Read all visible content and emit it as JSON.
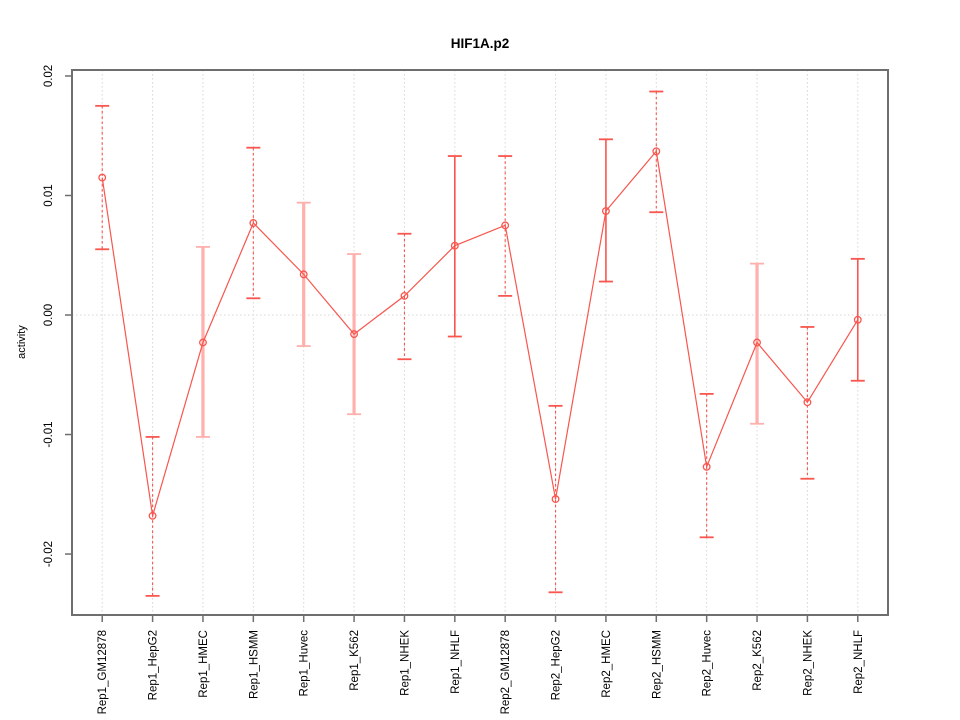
{
  "page": {
    "background": "#ffffff"
  },
  "chart_data": {
    "type": "line",
    "title": "HIF1A.p2",
    "xlabel": "",
    "ylabel": "activity",
    "legend": "none",
    "grid": {
      "vertical_at_categories": true,
      "horizontal_at_zero": true,
      "style": "dotted"
    },
    "ylim": [
      -0.0251,
      0.0205
    ],
    "yticks": [
      0.02,
      0.01,
      0.0,
      -0.01,
      -0.02
    ],
    "ytick_labels": [
      "0.02",
      "0.01",
      "0.00",
      "-0.01",
      "-0.02"
    ],
    "categories": [
      "Rep1_GM12878",
      "Rep1_HepG2",
      "Rep1_HMEC",
      "Rep1_HSMM",
      "Rep1_Huvec",
      "Rep1_K562",
      "Rep1_NHEK",
      "Rep1_NHLF",
      "Rep2_GM12878",
      "Rep2_HepG2",
      "Rep2_HMEC",
      "Rep2_HSMM",
      "Rep2_Huvec",
      "Rep2_K562",
      "Rep2_NHEK",
      "Rep2_NHLF"
    ],
    "series": [
      {
        "name": "activity",
        "values": [
          0.0115,
          -0.0168,
          -0.0023,
          0.0077,
          0.0034,
          -0.0016,
          0.0016,
          0.0058,
          0.0075,
          -0.0154,
          0.0087,
          0.0137,
          -0.0127,
          -0.0023,
          -0.0073,
          -0.0004
        ],
        "upper": [
          0.0175,
          -0.0102,
          0.0057,
          0.014,
          0.0094,
          0.0051,
          0.0068,
          0.0133,
          0.0133,
          -0.0076,
          0.0147,
          0.0187,
          -0.0066,
          0.0043,
          -0.001,
          0.0047
        ],
        "lower": [
          0.0055,
          -0.0235,
          -0.0102,
          0.0014,
          -0.0026,
          -0.0083,
          -0.0037,
          -0.0018,
          0.0016,
          -0.0232,
          0.0028,
          0.0086,
          -0.0186,
          -0.0091,
          -0.0137,
          -0.0055
        ],
        "bar_styles": [
          "dashed",
          "dashed",
          "thick",
          "dashed",
          "thick",
          "thick",
          "dashed",
          "solid",
          "dashed",
          "dashed",
          "solid",
          "dashed",
          "dashed",
          "thick",
          "dashed",
          "solid"
        ]
      }
    ],
    "colors": {
      "line": "#f8564e",
      "error_light": "#ffb0ac",
      "border": "#6e6e6e",
      "grid": "#d7d7d7",
      "tick": "#6e6e6e",
      "text": "#000000"
    }
  }
}
